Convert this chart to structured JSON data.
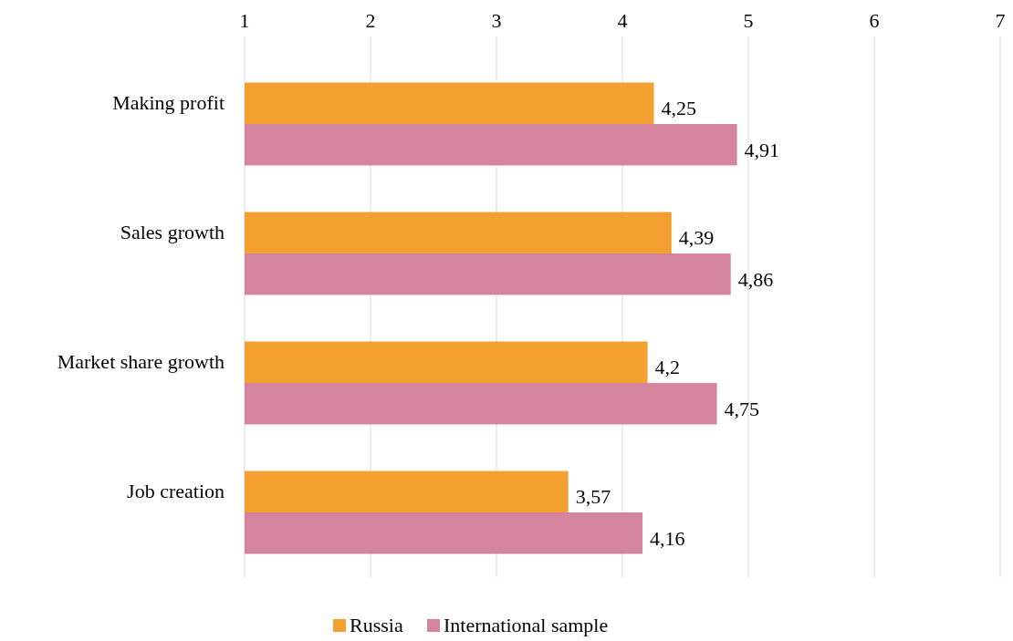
{
  "chart_data": {
    "type": "bar",
    "orientation": "horizontal",
    "categories": [
      "Making profit",
      "Sales growth",
      "Market share growth",
      "Job creation"
    ],
    "series": [
      {
        "name": "Russia",
        "color": "#f4a030",
        "values": [
          4.25,
          4.39,
          4.2,
          3.57
        ],
        "value_labels": [
          "4,25",
          "4,39",
          "4,2",
          "3,57"
        ]
      },
      {
        "name": "International sample",
        "color": "#d4849c",
        "values": [
          4.91,
          4.86,
          4.75,
          4.16
        ],
        "value_labels": [
          "4,91",
          "4,86",
          "4,75",
          "4,16"
        ]
      }
    ],
    "xlim": [
      1,
      7
    ],
    "xticks": [
      1,
      2,
      3,
      4,
      5,
      6,
      7
    ],
    "grid": "x",
    "legend": "bottom"
  }
}
